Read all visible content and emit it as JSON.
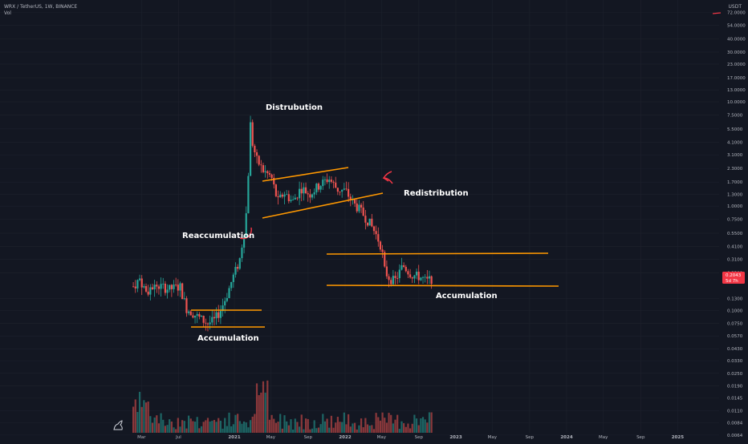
{
  "header": {
    "symbol_line": "WRX / TetherUS, 1W, BINANCE",
    "volume_label": "Vol",
    "currency": "USDT"
  },
  "price_labels": {
    "last_price": "0.2043",
    "countdown": "5d 7h"
  },
  "chart_data": {
    "type": "candlestick",
    "y_scale": "log",
    "ylim": [
      0.0065,
      85
    ],
    "y_ticks": [
      "72.0000",
      "54.0000",
      "40.0000",
      "30.0000",
      "23.0000",
      "17.0000",
      "13.0000",
      "10.0000",
      "7.5000",
      "5.5000",
      "4.1000",
      "3.1000",
      "2.3000",
      "1.7000",
      "1.3000",
      "1.0000",
      "0.7500",
      "0.5500",
      "0.4100",
      "0.3100",
      "0.2300",
      "0.1300",
      "0.1000",
      "0.0750",
      "0.0570",
      "0.0430",
      "0.0330",
      "0.0250",
      "0.0190",
      "0.0145",
      "0.0110",
      "0.0084",
      "0.0064"
    ],
    "x_ticks": [
      {
        "label": "Mar",
        "date": "2020-03-01",
        "bold": false
      },
      {
        "label": "Jul",
        "date": "2020-07-01",
        "bold": false
      },
      {
        "label": "2021",
        "date": "2021-01-01",
        "bold": true
      },
      {
        "label": "May",
        "date": "2021-05-01",
        "bold": false
      },
      {
        "label": "Sep",
        "date": "2021-09-01",
        "bold": false
      },
      {
        "label": "2022",
        "date": "2022-01-01",
        "bold": true
      },
      {
        "label": "May",
        "date": "2022-05-01",
        "bold": false
      },
      {
        "label": "Sep",
        "date": "2022-09-01",
        "bold": false
      },
      {
        "label": "2023",
        "date": "2023-01-01",
        "bold": true
      },
      {
        "label": "May",
        "date": "2023-05-01",
        "bold": false
      },
      {
        "label": "Sep",
        "date": "2023-09-01",
        "bold": false
      },
      {
        "label": "2024",
        "date": "2024-01-01",
        "bold": true
      },
      {
        "label": "May",
        "date": "2024-05-01",
        "bold": false
      },
      {
        "label": "Sep",
        "date": "2024-09-01",
        "bold": false
      },
      {
        "label": "2025",
        "date": "2025-01-01",
        "bold": true
      }
    ],
    "anchors": [
      [
        "2020-02-03",
        0.17
      ],
      [
        "2020-02-24",
        0.2
      ],
      [
        "2020-03-16",
        0.15
      ],
      [
        "2020-04-06",
        0.17
      ],
      [
        "2020-05-04",
        0.17
      ],
      [
        "2020-06-01",
        0.16
      ],
      [
        "2020-07-06",
        0.17
      ],
      [
        "2020-07-27",
        0.105
      ],
      [
        "2020-09-07",
        0.085
      ],
      [
        "2020-10-05",
        0.075
      ],
      [
        "2020-10-26",
        0.08
      ],
      [
        "2020-11-16",
        0.1
      ],
      [
        "2020-12-07",
        0.14
      ],
      [
        "2020-12-28",
        0.21
      ],
      [
        "2021-01-18",
        0.3
      ],
      [
        "2021-02-01",
        0.55
      ],
      [
        "2021-02-08",
        0.75
      ],
      [
        "2021-02-15",
        1.7
      ],
      [
        "2021-02-22",
        6.5
      ],
      [
        "2021-03-01",
        4.1
      ],
      [
        "2021-03-15",
        2.8
      ],
      [
        "2021-04-05",
        2.2
      ],
      [
        "2021-05-03",
        1.9
      ],
      [
        "2021-05-24",
        1.1
      ],
      [
        "2021-06-14",
        1.35
      ],
      [
        "2021-07-12",
        1.1
      ],
      [
        "2021-08-09",
        1.5
      ],
      [
        "2021-09-06",
        1.3
      ],
      [
        "2021-10-04",
        1.55
      ],
      [
        "2021-11-08",
        1.85
      ],
      [
        "2021-12-06",
        1.45
      ],
      [
        "2022-01-03",
        1.4
      ],
      [
        "2022-01-24",
        1.1
      ],
      [
        "2022-02-21",
        0.9
      ],
      [
        "2022-03-21",
        0.7
      ],
      [
        "2022-04-11",
        0.55
      ],
      [
        "2022-05-02",
        0.4
      ],
      [
        "2022-05-09",
        0.25
      ],
      [
        "2022-05-23",
        0.21
      ],
      [
        "2022-06-13",
        0.19
      ],
      [
        "2022-07-11",
        0.27
      ],
      [
        "2022-08-08",
        0.22
      ],
      [
        "2022-09-05",
        0.21
      ],
      [
        "2022-09-26",
        0.19
      ],
      [
        "2022-10-17",
        0.205
      ]
    ],
    "annotations": [
      {
        "label": "Distrubution"
      },
      {
        "label": "Reaccumulation"
      },
      {
        "label": "Redistribution"
      },
      {
        "label": "Accumulation"
      },
      {
        "label": "Accumulation"
      }
    ],
    "grid": true,
    "colors": {
      "background": "#131722",
      "up": "#26a69a",
      "down": "#ef5350",
      "trendline": "#ff9800",
      "price_badge": "#f23645",
      "arrow": "#f23645"
    }
  }
}
